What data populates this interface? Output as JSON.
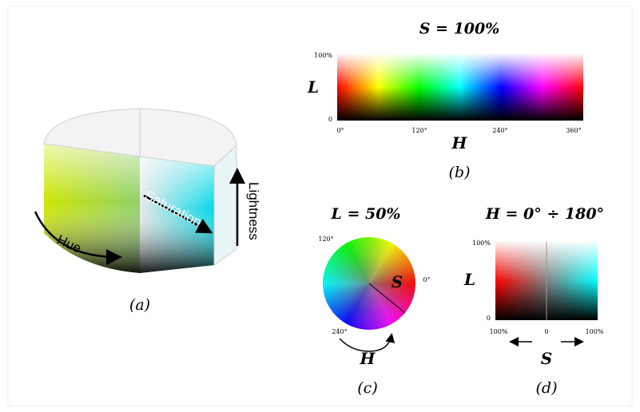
{
  "panel_a": {
    "labels": {
      "saturation": "Saturation",
      "lightness": "Lightness",
      "hue": "Hue"
    },
    "caption": "(a)"
  },
  "panel_b": {
    "title": "S = 100%",
    "y_axis": {
      "label": "L",
      "ticks": [
        "100%",
        "0"
      ]
    },
    "x_axis": {
      "label": "H",
      "ticks": [
        "0°",
        "120°",
        "240°",
        "360°"
      ]
    },
    "caption": "(b)"
  },
  "panel_c": {
    "title": "L = 50%",
    "angle_labels": [
      "120°",
      "0°",
      "240°"
    ],
    "radius_label": "S",
    "arrow_label": "H",
    "caption": "(c)"
  },
  "panel_d": {
    "title": "H = 0° ÷ 180°",
    "y_axis": {
      "label": "L",
      "ticks": [
        "100%",
        "0"
      ]
    },
    "x_axis": {
      "label": "S",
      "ticks": [
        "100%",
        "0",
        "100%"
      ]
    },
    "caption": "(d)"
  }
}
